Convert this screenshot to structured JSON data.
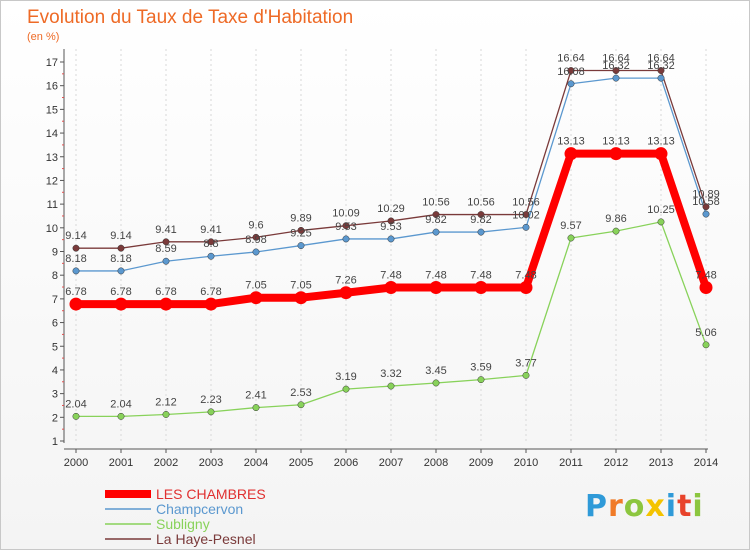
{
  "title": "Evolution du Taux de Taxe d'Habitation",
  "unit": "(en %)",
  "logo": {
    "p": "P",
    "r": "r",
    "o": "o",
    "x": "x",
    "i1": "i",
    "t": "t",
    "i2": "i"
  },
  "chart_data": {
    "type": "line",
    "title": "Evolution du Taux de Taxe d'Habitation",
    "ylabel": "(en %)",
    "xlabel": "",
    "ylim": [
      1,
      17
    ],
    "yticks": [
      1,
      2,
      3,
      4,
      5,
      6,
      7,
      8,
      9,
      10,
      11,
      12,
      13,
      14,
      15,
      16,
      17
    ],
    "grid": "vertical-dashed",
    "legend_position": "bottom-left",
    "categories": [
      "2000",
      "2001",
      "2002",
      "2003",
      "2004",
      "2005",
      "2006",
      "2007",
      "2008",
      "2009",
      "2010",
      "2011",
      "2012",
      "2013",
      "2014"
    ],
    "series": [
      {
        "name": "Subligny",
        "color": "#88d25a",
        "width": 1.3,
        "values": [
          2.04,
          2.04,
          2.12,
          2.23,
          2.41,
          2.53,
          3.19,
          3.32,
          3.45,
          3.59,
          3.77,
          9.57,
          9.86,
          10.25,
          5.06
        ],
        "labels": [
          "2.04",
          "2.04",
          "2.12",
          "2.23",
          "2.41",
          "2.53",
          "3.19",
          "3.32",
          "3.45",
          "3.59",
          "3.77",
          "9.57",
          "9.86",
          "10.25",
          "5.06"
        ]
      },
      {
        "name": "Champcervon",
        "color": "#5b98cf",
        "width": 1.3,
        "values": [
          8.18,
          8.18,
          8.59,
          8.8,
          8.98,
          9.25,
          9.53,
          9.53,
          9.82,
          9.82,
          10.02,
          16.08,
          16.32,
          16.32,
          10.58
        ],
        "labels": [
          "8.18",
          "8.18",
          "8.59",
          "8.8",
          "8.98",
          "9.25",
          "9.53",
          "9.53",
          "9.82",
          "9.82",
          "10.02",
          "16.08",
          "16.32",
          "16.32",
          "10.58"
        ]
      },
      {
        "name": "La Haye-Pesnel",
        "color": "#7a3a3a",
        "width": 1.3,
        "values": [
          9.14,
          9.14,
          9.41,
          9.41,
          9.6,
          9.89,
          10.09,
          10.29,
          10.56,
          10.56,
          10.56,
          16.64,
          16.64,
          16.64,
          10.89
        ],
        "labels": [
          "9.14",
          "9.14",
          "9.41",
          "9.41",
          "9.6",
          "9.89",
          "10.09",
          "10.29",
          "10.56",
          "10.56",
          "10.56",
          "16.64",
          "16.64",
          "16.64",
          "10.89"
        ]
      },
      {
        "name": "LES CHAMBRES",
        "color": "#ff0000",
        "width": 8,
        "values": [
          6.78,
          6.78,
          6.78,
          6.78,
          7.05,
          7.05,
          7.26,
          7.48,
          7.48,
          7.48,
          7.48,
          13.13,
          13.13,
          13.13,
          7.48
        ],
        "labels": [
          "6.78",
          "6.78",
          "6.78",
          "6.78",
          "7.05",
          "7.05",
          "7.26",
          "7.48",
          "7.48",
          "7.48",
          "7.48",
          "13.13",
          "13.13",
          "13.13",
          "7.48"
        ]
      }
    ],
    "legend_order": [
      "LES CHAMBRES",
      "Champcervon",
      "Subligny",
      "La Haye-Pesnel"
    ]
  }
}
